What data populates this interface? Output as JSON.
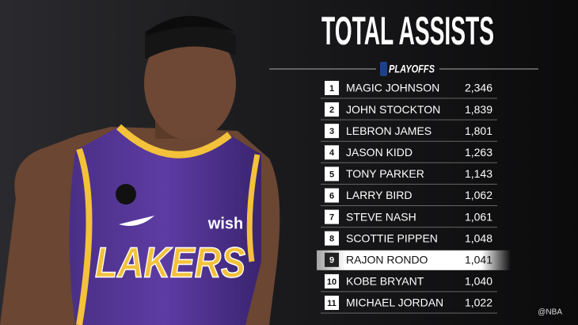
{
  "title": "TOTAL ASSISTS",
  "subtitle": "PLAYOFFS",
  "table": {
    "rows": [
      [
        "1",
        "MAGIC JOHNSON",
        "2,346"
      ],
      [
        "2",
        "JOHN STOCKTON",
        "1,839"
      ],
      [
        "3",
        "LEBRON JAMES",
        "1,801"
      ],
      [
        "4",
        "JASON KIDD",
        "1,263"
      ],
      [
        "5",
        "TONY PARKER",
        "1,143"
      ],
      [
        "6",
        "LARRY BIRD",
        "1,062"
      ],
      [
        "7",
        "STEVE NASH",
        "1,061"
      ],
      [
        "8",
        "SCOTTIE PIPPEN",
        "1,048"
      ],
      [
        "9",
        "RAJON RONDO",
        "1,041"
      ],
      [
        "10",
        "KOBE BRYANT",
        "1,040"
      ],
      [
        "11",
        "MICHAEL JORDAN",
        "1,022"
      ]
    ],
    "highlight_row": 8
  },
  "jersey": {
    "team": "LAKERS",
    "sponsor": "wish"
  },
  "watermark": "@NBA"
}
